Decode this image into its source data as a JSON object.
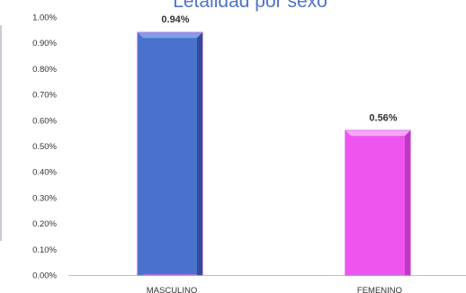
{
  "chart_data": {
    "type": "bar",
    "title": "Letalidad por sexo",
    "categories": [
      "MASCULINO",
      "FEMENINO"
    ],
    "values": [
      0.94,
      0.56
    ],
    "value_labels": [
      "0.94%",
      "0.56%"
    ],
    "ylim": [
      0,
      1.0
    ],
    "y_ticks": [
      0,
      0.1,
      0.2,
      0.3,
      0.4,
      0.5,
      0.6,
      0.7,
      0.8,
      0.9,
      1.0
    ],
    "y_tick_labels": [
      "0.00%",
      "0.10%",
      "0.20%",
      "0.30%",
      "0.40%",
      "0.50%",
      "0.60%",
      "0.70%",
      "0.80%",
      "0.90%",
      "1.00%"
    ],
    "xlabel": "",
    "ylabel": "",
    "grid": false,
    "legend": "none",
    "colors": {
      "title": "#4f74c8",
      "bar_masculino": "#4a72cc",
      "bar_masculino_dark": "#2d4f9a",
      "bar_masculino_light": "#7f9fe6",
      "bar_femenino": "#ee55ee",
      "bar_femenino_dark": "#c238c2",
      "bar_femenino_light": "#f8a4f8",
      "bar_outline": "#d070e6",
      "axis": "#bfbfbf",
      "text": "#333333"
    }
  }
}
